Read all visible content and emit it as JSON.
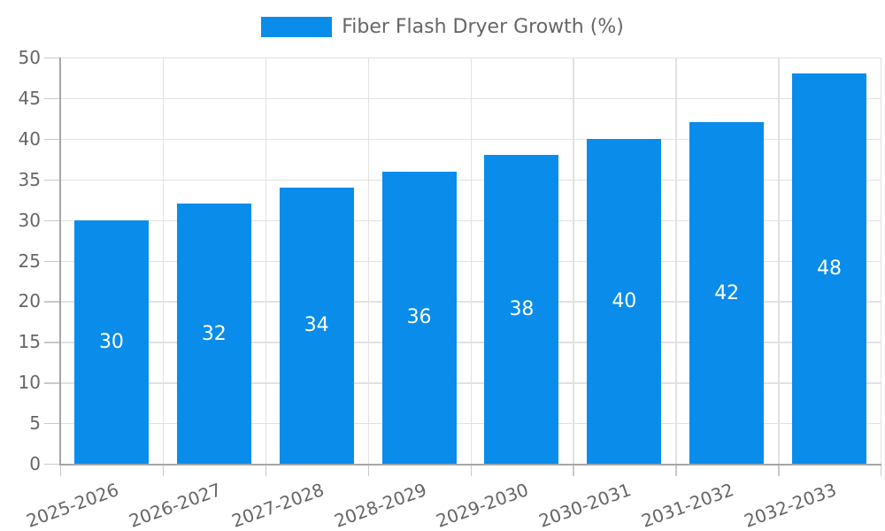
{
  "chart_data": {
    "type": "bar",
    "title": "Fiber Flash Dryer Growth (%)",
    "categories": [
      "2025-2026",
      "2026-2027",
      "2027-2028",
      "2028-2029",
      "2029-2030",
      "2030-2031",
      "2031-2032",
      "2032-2033"
    ],
    "values": [
      30,
      32,
      34,
      36,
      38,
      40,
      42,
      48
    ],
    "bar_value_labels": [
      "30",
      "32",
      "34",
      "36",
      "38",
      "40",
      "42",
      "48"
    ],
    "ylim": [
      0,
      50
    ],
    "ytick_step": 5,
    "yticks": [
      0,
      5,
      10,
      15,
      20,
      25,
      30,
      35,
      40,
      45,
      50
    ],
    "legend_position": "top-center",
    "grid": "both",
    "x_label_rotation_deg": -20,
    "colors": {
      "bar": "#0a8ceb",
      "bar_value_text": "#ffffff",
      "axis_text": "#666666",
      "grid_line": "#e2e2e2",
      "axis_line": "#a6a6a6",
      "tick_mark": "#c9c9c9",
      "background": "#ffffff"
    }
  }
}
